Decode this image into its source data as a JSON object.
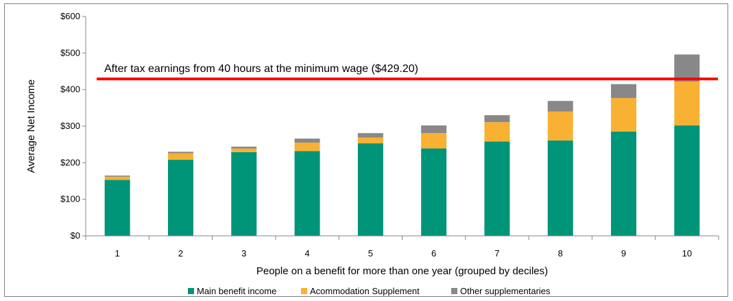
{
  "chart_data": {
    "type": "bar",
    "stacked": true,
    "categories": [
      "1",
      "2",
      "3",
      "4",
      "5",
      "6",
      "7",
      "8",
      "9",
      "10"
    ],
    "series": [
      {
        "name": "Main benefit income",
        "color": "#009479",
        "values": [
          153,
          208,
          229,
          232,
          253,
          239,
          258,
          261,
          285,
          302
        ]
      },
      {
        "name": "Acommodation Supplement",
        "color": "#f8b133",
        "values": [
          9,
          18,
          10,
          23,
          16,
          42,
          53,
          79,
          92,
          120
        ]
      },
      {
        "name": "Other supplementaries",
        "color": "#888888",
        "values": [
          3,
          4,
          5,
          11,
          12,
          21,
          19,
          29,
          38,
          74
        ]
      }
    ],
    "xlabel": "People on a benefit for more than one year (grouped by deciles)",
    "ylabel": "Average Net Income",
    "ylim": [
      0,
      600
    ],
    "yticks": [
      0,
      100,
      200,
      300,
      400,
      500,
      600
    ],
    "ytick_labels": [
      "$0",
      "$100",
      "$200",
      "$300",
      "$400",
      "$500",
      "$600"
    ],
    "reference_line": {
      "value": 429.2,
      "label": "After tax earnings from 40 hours at the minimum wage ($429.20)",
      "color": "#ff0000"
    },
    "grid": false,
    "legend_position": "bottom"
  }
}
